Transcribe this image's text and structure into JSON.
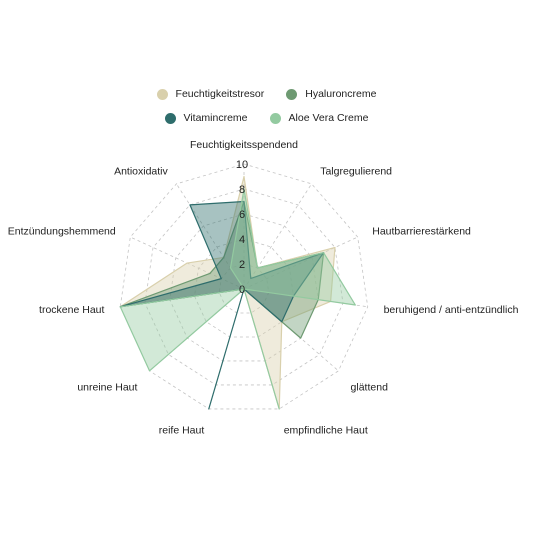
{
  "chart_data": {
    "type": "radar",
    "axes": [
      "Feuchtigkeitsspendend",
      "Talgregulierend",
      "Hautbarrierestärkend",
      "beruhigend / anti-entzündlich",
      "glättend",
      "empfindliche Haut",
      "reife Haut",
      "unreine Haut",
      "trockene Haut",
      "Entzündungshemmend",
      "Antioxidativ"
    ],
    "range": [
      0,
      10
    ],
    "ticks": [
      "0",
      "2",
      "4",
      "6",
      "8",
      "10"
    ],
    "legend_position": "top",
    "series": [
      {
        "name": "Feuchtigkeitstresor",
        "color": "#d9d0ac",
        "values": [
          9,
          2,
          8,
          7,
          4,
          10,
          0,
          0,
          10,
          5,
          3
        ]
      },
      {
        "name": "Hyaluroncreme",
        "color": "#6e9a72",
        "values": [
          7,
          2,
          7,
          6,
          6,
          0,
          0,
          0,
          10,
          3,
          3
        ]
      },
      {
        "name": "Vitamincreme",
        "color": "#2e6d6c",
        "values": [
          7,
          1,
          7,
          4,
          4,
          0,
          10,
          0,
          10,
          2,
          8
        ]
      },
      {
        "name": "Aloe Vera Creme",
        "color": "#93caa0",
        "values": [
          8,
          2,
          7,
          9,
          0,
          10,
          0,
          10,
          10,
          0,
          2
        ]
      }
    ]
  }
}
